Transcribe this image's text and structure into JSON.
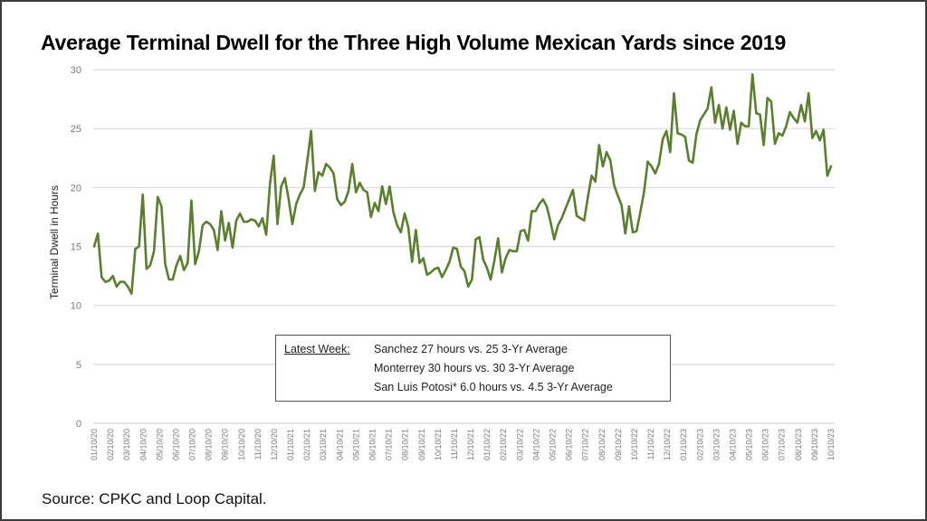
{
  "chart_data": {
    "type": "line",
    "title": "Average Terminal Dwell for the Three High Volume Mexican Yards since 2019",
    "xlabel": "",
    "ylabel": "Terminal Dwell in Hours",
    "ylim": [
      0,
      30
    ],
    "yticks": [
      0,
      5,
      10,
      15,
      20,
      25,
      30
    ],
    "grid": true,
    "line_color": "#5a7f2e",
    "xtick_labels": [
      "01/10/20",
      "02/10/20",
      "03/10/20",
      "04/10/20",
      "05/10/20",
      "06/10/20",
      "07/10/20",
      "08/10/20",
      "09/10/20",
      "10/10/20",
      "11/10/20",
      "12/10/20",
      "01/10/21",
      "02/10/21",
      "03/10/21",
      "04/10/21",
      "05/10/21",
      "06/10/21",
      "07/10/21",
      "08/10/21",
      "09/10/21",
      "10/10/21",
      "11/10/21",
      "12/10/21",
      "01/10/22",
      "02/10/22",
      "03/10/22",
      "04/10/22",
      "05/10/22",
      "06/10/22",
      "07/10/22",
      "08/10/22",
      "09/10/22",
      "10/10/22",
      "11/10/22",
      "12/10/22",
      "01/10/23",
      "02/10/23",
      "03/10/23",
      "04/10/23",
      "05/10/23",
      "06/10/23",
      "07/10/23",
      "08/10/23",
      "09/10/23",
      "10/10/23"
    ],
    "series": [
      {
        "name": "Average Terminal Dwell",
        "frequency": "weekly",
        "values": [
          15.0,
          16.1,
          12.4,
          12.0,
          12.1,
          12.5,
          11.6,
          12.0,
          12.0,
          11.6,
          11.0,
          14.8,
          15.0,
          19.4,
          13.1,
          13.4,
          14.6,
          19.2,
          18.4,
          13.5,
          12.2,
          12.2,
          13.4,
          14.2,
          13.0,
          13.6,
          18.9,
          13.5,
          14.6,
          16.8,
          17.1,
          16.9,
          16.4,
          14.7,
          18.0,
          15.5,
          17.0,
          14.9,
          17.2,
          17.8,
          17.1,
          17.1,
          17.3,
          17.2,
          16.7,
          17.4,
          16.0,
          20.3,
          22.7,
          16.9,
          20.1,
          20.8,
          19.0,
          16.9,
          18.6,
          19.4,
          20.0,
          22.3,
          24.8,
          19.7,
          21.3,
          21.0,
          22.0,
          21.7,
          21.2,
          19.0,
          18.5,
          18.8,
          19.7,
          22.0,
          19.6,
          20.4,
          19.8,
          19.6,
          17.5,
          18.7,
          18.0,
          20.1,
          18.6,
          20.1,
          17.9,
          16.8,
          16.2,
          17.8,
          16.6,
          13.7,
          16.4,
          13.6,
          14.0,
          12.6,
          12.8,
          13.1,
          13.2,
          12.4,
          13.0,
          13.7,
          14.9,
          14.8,
          13.3,
          12.9,
          11.6,
          12.2,
          15.6,
          15.8,
          13.9,
          13.2,
          12.2,
          13.8,
          15.7,
          12.8,
          14.0,
          14.7,
          14.6,
          14.6,
          16.3,
          16.4,
          15.5,
          18.0,
          18.0,
          18.6,
          19.0,
          18.4,
          17.1,
          15.6,
          16.8,
          17.4,
          18.2,
          19.0,
          19.8,
          17.6,
          17.4,
          17.2,
          19.2,
          21.0,
          20.5,
          23.6,
          21.8,
          23.0,
          22.3,
          20.2,
          19.3,
          18.5,
          16.1,
          18.4,
          16.2,
          16.3,
          17.9,
          19.6,
          22.2,
          21.8,
          21.2,
          22.0,
          24.1,
          24.8,
          23.0,
          28.0,
          24.6,
          24.5,
          24.3,
          22.3,
          22.1,
          24.5,
          25.7,
          26.2,
          26.7,
          28.5,
          25.5,
          27.0,
          25.0,
          26.8,
          24.9,
          26.5,
          23.7,
          25.5,
          25.2,
          25.2,
          29.6,
          26.3,
          26.2,
          23.6,
          27.6,
          27.3,
          23.7,
          24.6,
          24.4,
          25.2,
          26.4,
          25.9,
          25.5,
          27.0,
          25.6,
          28.0,
          24.2,
          24.8,
          24.0,
          24.9,
          21.0,
          21.8
        ]
      }
    ],
    "annotation": {
      "heading": "Latest Week:",
      "lines": [
        "Sanchez 27 hours vs. 25 3-Yr Average",
        "Monterrey  30 hours vs. 30 3-Yr Average",
        "San Luis Potosi* 6.0 hours vs. 4.5 3-Yr Average"
      ]
    },
    "source": "Source: CPKC and Loop Capital."
  }
}
